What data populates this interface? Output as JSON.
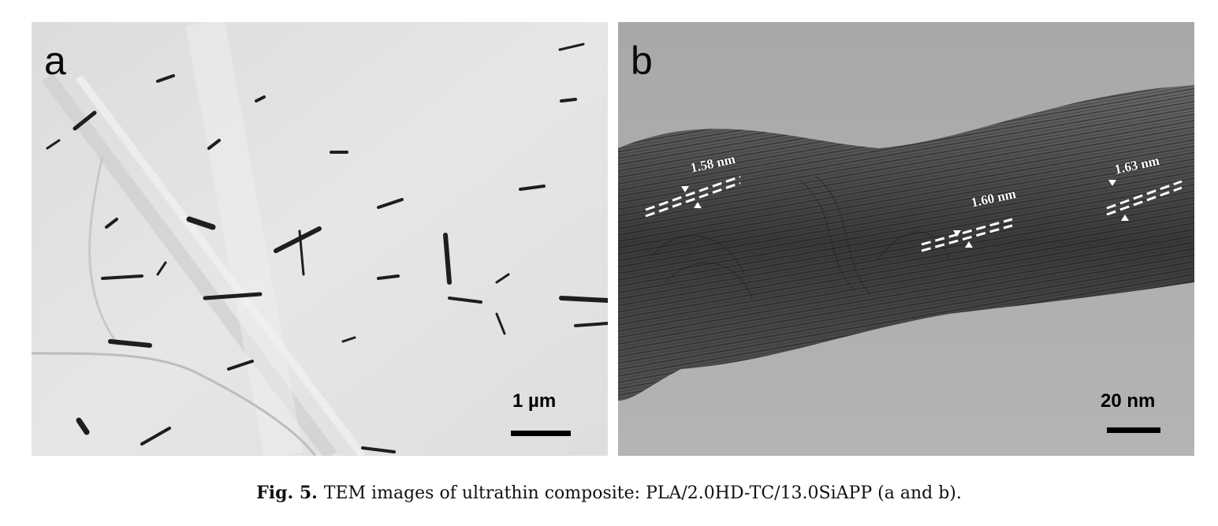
{
  "figure": {
    "panel_a": {
      "letter": "a",
      "scale_bar_label": "1 µm"
    },
    "panel_b": {
      "letter": "b",
      "scale_bar_label": "20 nm",
      "d_spacings": [
        "1.58 nm",
        "1.60 nm",
        "1.63 nm"
      ]
    },
    "caption": {
      "label": "Fig. 5.",
      "text": "TEM images of ultrathin composite: PLA/2.0HD-TC/13.0SiAPP (a and b)."
    }
  },
  "colors": {
    "panel_a_background": "#e3e3e3",
    "panel_b_background": "#9e9e9e",
    "text": "#000000"
  }
}
